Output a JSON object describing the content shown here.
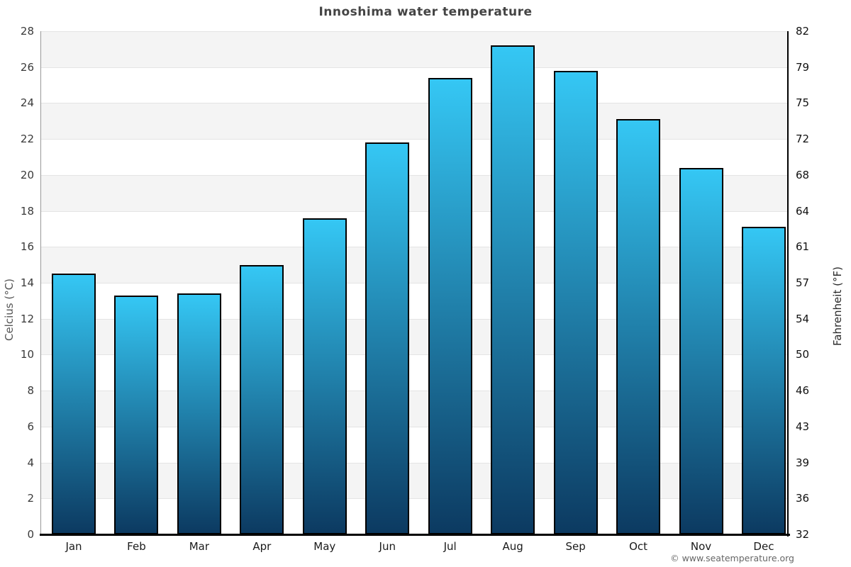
{
  "title": "Innoshima water temperature",
  "footer": {
    "credit": "© www.seatemperature.org"
  },
  "chart_data": {
    "type": "bar",
    "title": "Innoshima water temperature",
    "categories": [
      "Jan",
      "Feb",
      "Mar",
      "Apr",
      "May",
      "Jun",
      "Jul",
      "Aug",
      "Sep",
      "Oct",
      "Nov",
      "Dec"
    ],
    "values": [
      14.5,
      13.3,
      13.4,
      15,
      17.6,
      21.8,
      25.4,
      27.2,
      25.8,
      23.1,
      20.4,
      17.1
    ],
    "xlabel": "",
    "ylabel_left": "Celcius (°C)",
    "ylabel_right": "Fahrenheit (°F)",
    "ylim": [
      0,
      28
    ],
    "ytick_step": 2,
    "yticks_celsius": [
      28,
      26,
      24,
      22,
      20,
      18,
      16,
      14,
      12,
      10,
      8,
      6,
      4,
      2,
      0
    ],
    "yticks_fahrenheit": [
      82,
      79,
      75,
      72,
      68,
      64,
      61,
      57,
      54,
      50,
      46,
      43,
      39,
      36,
      32
    ],
    "legend_position": "none",
    "grid": "horizontal-bands",
    "colors": {
      "bar_gradient_top": "#35c7f4",
      "bar_gradient_bottom": "#0c3a61",
      "bar_border": "#000000",
      "band_fill": "#f4f4f4",
      "gridline": "#e4e4e4",
      "axis_line": "#000000",
      "title_color": "#444444",
      "tick_color": "#3a3a3a",
      "footer_color": "#666666"
    }
  }
}
